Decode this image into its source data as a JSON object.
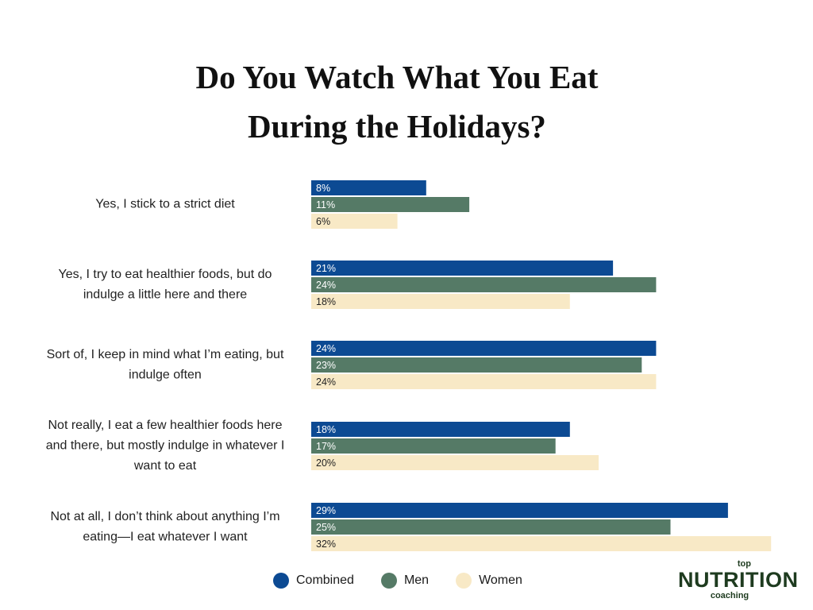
{
  "title_lines": [
    "Do You Watch What You Eat",
    "During the Holidays?"
  ],
  "chart_data": {
    "type": "bar",
    "orientation": "horizontal",
    "title": "Do You Watch What You Eat During the Holidays?",
    "categories": [
      [
        "Yes, I stick to a strict diet"
      ],
      [
        "Yes, I try to eat healthier foods, but do",
        "indulge a little here and there"
      ],
      [
        "Sort of, I keep in mind what I’m eating, but",
        "indulge often"
      ],
      [
        "Not really, I eat a few healthier foods here",
        "and there, but mostly indulge in whatever I",
        "want to eat"
      ],
      [
        "Not at all, I don’t think about anything I’m",
        "eating—I eat whatever I want"
      ]
    ],
    "series": [
      {
        "name": "Combined",
        "color": "#0c4a93",
        "label_color": "#ffffff",
        "values": [
          8,
          21,
          24,
          18,
          29
        ]
      },
      {
        "name": "Men",
        "color": "#557a66",
        "label_color": "#ffffff",
        "values": [
          11,
          24,
          23,
          17,
          25
        ]
      },
      {
        "name": "Women",
        "color": "#f8e9c6",
        "label_color": "#222222",
        "values": [
          6,
          18,
          24,
          20,
          32
        ]
      }
    ],
    "value_suffix": "%",
    "xlim": [
      0,
      32
    ],
    "grid": false,
    "legend": "bottom-center"
  },
  "legend": [
    {
      "label": "Combined",
      "color": "#0c4a93"
    },
    {
      "label": "Men",
      "color": "#557a66"
    },
    {
      "label": "Women",
      "color": "#f8e9c6"
    }
  ],
  "logo": {
    "top": "top",
    "main": "NUTRITION",
    "sub": "coaching"
  }
}
